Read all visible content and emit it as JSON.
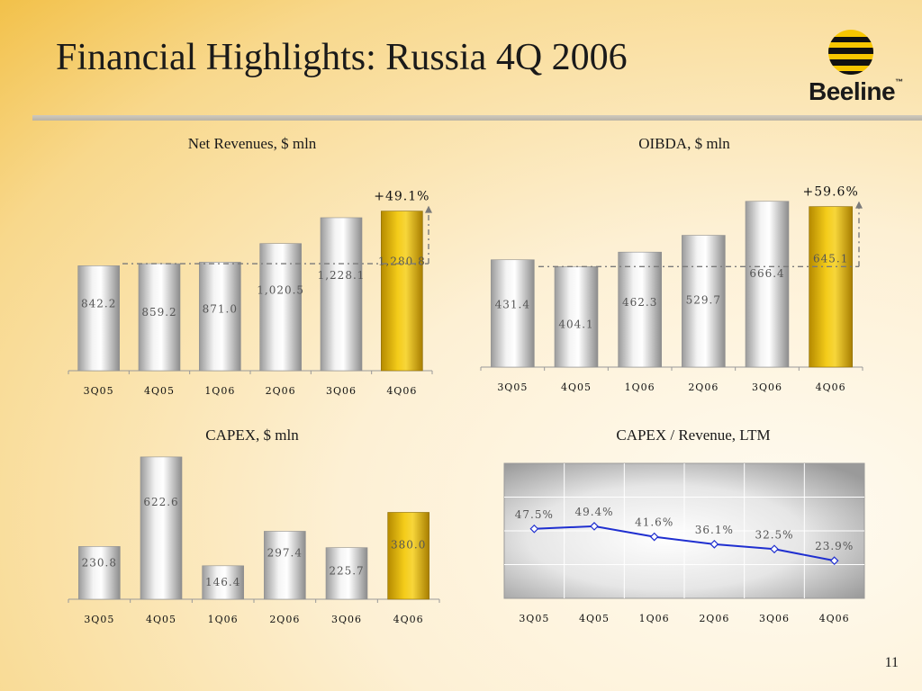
{
  "slide": {
    "title": "Financial Highlights: Russia 4Q 2006",
    "logo_text": "Beeline",
    "logo_tm": "™",
    "page_number": "11"
  },
  "colors": {
    "silver_bar": "#d9d9d9",
    "gold_bar": "#e0b400",
    "line": "#1f2fd0",
    "dash": "#7a7a7a"
  },
  "chart_data": [
    {
      "id": "net-revenues",
      "type": "bar",
      "title": "Net Revenues, $ mln",
      "categories": [
        "3Q05",
        "4Q05",
        "1Q06",
        "2Q06",
        "3Q06",
        "4Q06"
      ],
      "values": [
        842.2,
        859.2,
        871.0,
        1020.5,
        1228.1,
        1280.8
      ],
      "value_labels": [
        "842.2",
        "859.2",
        "871.0",
        "1,020.5",
        "1,228.1",
        "1,280.8"
      ],
      "highlight_index": 5,
      "growth_label": "+49.1%",
      "growth_from_index": 1,
      "ylim": [
        0,
        1300
      ]
    },
    {
      "id": "oibda",
      "type": "bar",
      "title": "OIBDA, $ mln",
      "categories": [
        "3Q05",
        "4Q05",
        "1Q06",
        "2Q06",
        "3Q06",
        "4Q06"
      ],
      "values": [
        431.4,
        404.1,
        462.3,
        529.7,
        666.4,
        645.1
      ],
      "value_labels": [
        "431.4",
        "404.1",
        "462.3",
        "529.7",
        "666.4",
        "645.1"
      ],
      "highlight_index": 5,
      "growth_label": "+59.6%",
      "growth_from_index": 1,
      "ylim": [
        0,
        680
      ]
    },
    {
      "id": "capex",
      "type": "bar",
      "title": "CAPEX, $ mln",
      "categories": [
        "3Q05",
        "4Q05",
        "1Q06",
        "2Q06",
        "3Q06",
        "4Q06"
      ],
      "values": [
        230.8,
        622.6,
        146.4,
        297.4,
        225.7,
        380.0
      ],
      "value_labels": [
        "230.8",
        "622.6",
        "146.4",
        "297.4",
        "225.7",
        "380.0"
      ],
      "highlight_index": 5,
      "ylim": [
        0,
        630
      ]
    },
    {
      "id": "capex-revenue",
      "type": "line",
      "title": "CAPEX / Revenue, LTM",
      "categories": [
        "3Q05",
        "4Q05",
        "1Q06",
        "2Q06",
        "3Q06",
        "4Q06"
      ],
      "values": [
        47.5,
        49.4,
        41.6,
        36.1,
        32.5,
        23.9
      ],
      "value_labels": [
        "47.5%",
        "49.4%",
        "41.6%",
        "36.1%",
        "32.5%",
        "23.9%"
      ],
      "ylim": [
        0,
        100
      ],
      "grid": true
    }
  ]
}
